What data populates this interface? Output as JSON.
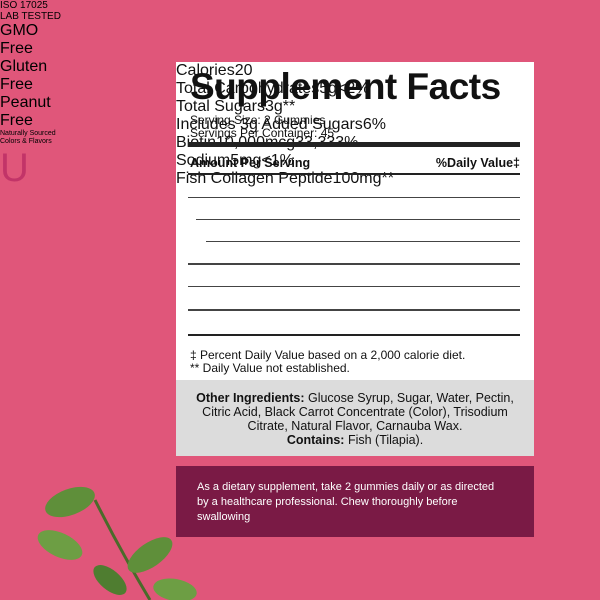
{
  "badges": [
    {
      "lines": [
        "ISO 17025",
        "LAB TESTED"
      ]
    },
    {
      "lines": [
        "GMO",
        "Free"
      ]
    },
    {
      "lines": [
        "Gluten",
        "Free"
      ]
    },
    {
      "lines": [
        "Peanut",
        "Free"
      ]
    },
    {
      "lines": [
        "Naturally Sourced",
        "Colors & Flavors"
      ]
    },
    {
      "lines": [
        "U"
      ]
    }
  ],
  "facts": {
    "title": "Supplement Facts",
    "serving_size": "Serving Size: 2 Gummies",
    "servings": "Servings Per Container: 45",
    "header": [
      "Amount Per Serving",
      "%Daily Value‡"
    ],
    "rows": [
      {
        "name": "Calories",
        "amount": "20"
      },
      {
        "name": "Total Carbohydrates",
        "amount": "5g",
        "dv": "<2%"
      },
      {
        "name": "Total Sugars",
        "amount": "3g",
        "dv": "**"
      },
      {
        "name": "Includes 3g Added Sugars",
        "dv": "6%"
      },
      {
        "name": "Biotin",
        "amount": "10,000mcg",
        "dv": "33,333%"
      },
      {
        "name": "Sodium",
        "amount": "5mg",
        "dv": "<1%"
      },
      {
        "name": "Fish Collagen Peptide",
        "amount": "100mg",
        "dv": "**"
      }
    ],
    "footnotes": [
      "‡ Percent Daily Value based on a 2,000 calorie diet.",
      "** Daily Value not established."
    ]
  },
  "ingredients": {
    "label": "Other Ingredients:",
    "text": "Glucose Syrup, Sugar, Water, Pectin, Citric Acid, Black Carrot Concentrate (Color), Trisodium Citrate, Natural Flavor, Carnauba Wax.",
    "contains_label": "Contains:",
    "contains_text": "Fish (Tilapia)."
  },
  "directions": "As a dietary supplement, take 2 gummies daily or as directed by a healthcare professional. Chew thoroughly before swallowing"
}
